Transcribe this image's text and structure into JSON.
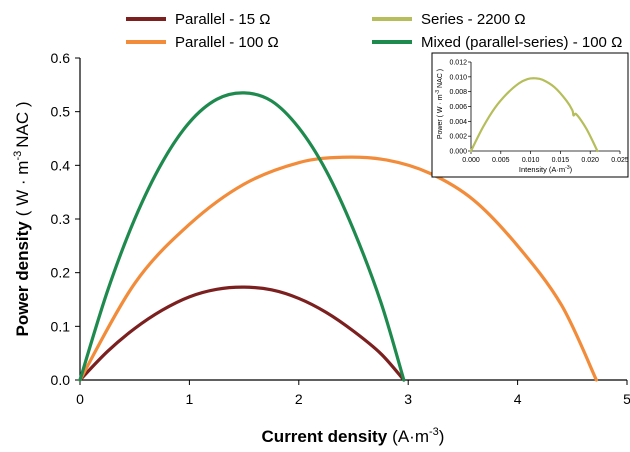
{
  "chart_data": [
    {
      "type": "line",
      "xlabel": "Current density",
      "xlabel_unit": "(A·m",
      "xlabel_unit_exp": "-3",
      "xlabel_unit_close": ")",
      "ylabel": "Power density",
      "ylabel_unit": "( W · m",
      "ylabel_unit_exp": "-3",
      "ylabel_unit_tail": "NAC )",
      "xlim": [
        0,
        5
      ],
      "ylim": [
        0,
        0.6
      ],
      "xticks": [
        0,
        1,
        2,
        3,
        4,
        5
      ],
      "xtick_labels": [
        "0",
        "1",
        "2",
        "3",
        "4",
        "5"
      ],
      "yticks": [
        0,
        0.1,
        0.2,
        0.3,
        0.4,
        0.5,
        0.6
      ],
      "ytick_labels": [
        "0.0",
        "0.1",
        "0.2",
        "0.3",
        "0.4",
        "0.5",
        "0.6"
      ],
      "grid": false,
      "legend_position": "top, two columns",
      "series": [
        {
          "name": "Parallel - 15 Ω",
          "color": "#7b1f1f",
          "x": [
            0,
            0.25,
            0.5,
            0.75,
            1.0,
            1.25,
            1.5,
            1.75,
            2.0,
            2.25,
            2.5,
            2.75,
            2.96
          ],
          "y": [
            0,
            0.053,
            0.096,
            0.13,
            0.155,
            0.169,
            0.173,
            0.168,
            0.152,
            0.126,
            0.091,
            0.049,
            0
          ]
        },
        {
          "name": "Parallel - 100 Ω",
          "color": "#f28c3a",
          "x": [
            0,
            0.5,
            1.0,
            1.5,
            2.0,
            2.4,
            2.8,
            3.2,
            3.6,
            4.0,
            4.4,
            4.72
          ],
          "y": [
            0,
            0.18,
            0.29,
            0.365,
            0.405,
            0.415,
            0.41,
            0.385,
            0.335,
            0.25,
            0.14,
            0
          ]
        },
        {
          "name": "Series - 2200 Ω",
          "color": "#b5be5a",
          "x": [],
          "y": []
        },
        {
          "name": "Mixed (parallel-series) - 100 Ω",
          "color": "#1e8a4e",
          "x": [
            0,
            0.25,
            0.5,
            0.75,
            1.0,
            1.25,
            1.5,
            1.75,
            2.0,
            2.25,
            2.5,
            2.75,
            2.96
          ],
          "y": [
            0,
            0.165,
            0.3,
            0.405,
            0.48,
            0.523,
            0.535,
            0.52,
            0.47,
            0.39,
            0.28,
            0.145,
            0
          ]
        }
      ]
    },
    {
      "type": "line",
      "xlabel": "Intensity (A·m",
      "xlabel_exp": "-3",
      "xlabel_close": ")",
      "ylabel": "Power  ( W · m",
      "ylabel_exp": "-3",
      "ylabel_tail": "NAC )",
      "xlim": [
        0,
        0.025
      ],
      "ylim": [
        0,
        0.012
      ],
      "xticks": [
        0,
        0.005,
        0.01,
        0.015,
        0.02,
        0.025
      ],
      "xtick_labels": [
        "0.000",
        "0.005",
        "0.010",
        "0.015",
        "0.020",
        "0.025"
      ],
      "yticks": [
        0,
        0.002,
        0.004,
        0.006,
        0.008,
        0.01,
        0.012
      ],
      "ytick_labels": [
        "0.000",
        "0.002",
        "0.004",
        "0.006",
        "0.008",
        "0.010",
        "0.012"
      ],
      "grid": false,
      "series": [
        {
          "name": "Series - 2200 Ω",
          "color": "#b5be5a",
          "x": [
            0,
            0.002,
            0.004,
            0.006,
            0.008,
            0.0095,
            0.0108,
            0.012,
            0.014,
            0.016,
            0.017,
            0.0172,
            0.0176,
            0.0185,
            0.0195,
            0.0205,
            0.0212
          ],
          "y": [
            0,
            0.0032,
            0.0058,
            0.0077,
            0.0091,
            0.0097,
            0.0098,
            0.0096,
            0.0086,
            0.0068,
            0.0055,
            0.0048,
            0.005,
            0.0041,
            0.0028,
            0.0012,
            0
          ]
        }
      ]
    }
  ]
}
